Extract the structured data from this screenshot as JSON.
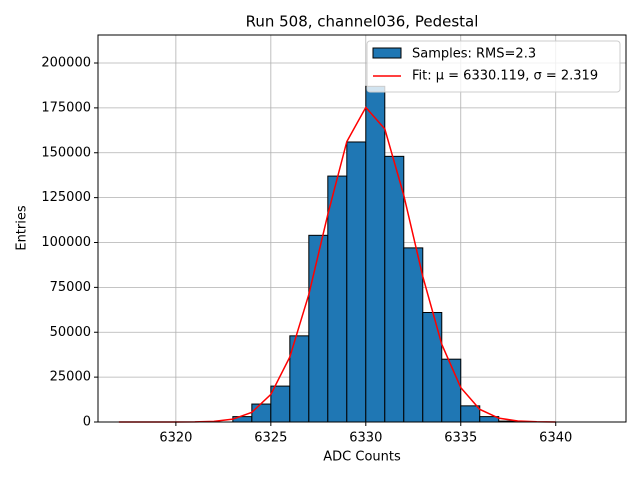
{
  "chart_data": {
    "type": "histogram",
    "title": "Run 508, channel036, Pedestal",
    "xlabel": "ADC Counts",
    "ylabel": "Entries",
    "bins": [
      6323,
      6324,
      6325,
      6326,
      6327,
      6328,
      6329,
      6330,
      6331,
      6332,
      6333,
      6334,
      6335,
      6336,
      6337,
      6338
    ],
    "values": [
      3000,
      10000,
      20000,
      48000,
      104000,
      137000,
      156000,
      187000,
      148000,
      97000,
      61000,
      35000,
      9000,
      3000,
      500
    ],
    "name": "Samples: RMS=2.3",
    "color": "#1f77b4",
    "edgecolor": "#000000",
    "lines": [
      {
        "name": "Fit: μ = 6330.119, σ = 2.319",
        "color": "#ff0000",
        "x": [
          6317,
          6318,
          6319,
          6320,
          6321,
          6322,
          6323,
          6324,
          6325,
          6326,
          6327,
          6328,
          6329,
          6330,
          6331,
          6332,
          6333,
          6334,
          6335,
          6336,
          6337,
          6338,
          6339,
          6340
        ],
        "values": [
          0,
          0,
          2,
          13,
          77,
          382,
          1580,
          5410,
          15360,
          36240,
          71040,
          115620,
          156210,
          175270,
          163290,
          126310,
          81120,
          43280,
          19160,
          7040,
          2150,
          545,
          115,
          20
        ]
      }
    ],
    "xlim": [
      6315.9,
      6343.7
    ],
    "ylim": [
      0,
      215600
    ],
    "xticks": [
      6320,
      6325,
      6330,
      6335,
      6340
    ],
    "yticks": [
      0,
      25000,
      50000,
      75000,
      100000,
      125000,
      150000,
      175000,
      200000
    ],
    "grid": true,
    "legend": "upper right"
  }
}
